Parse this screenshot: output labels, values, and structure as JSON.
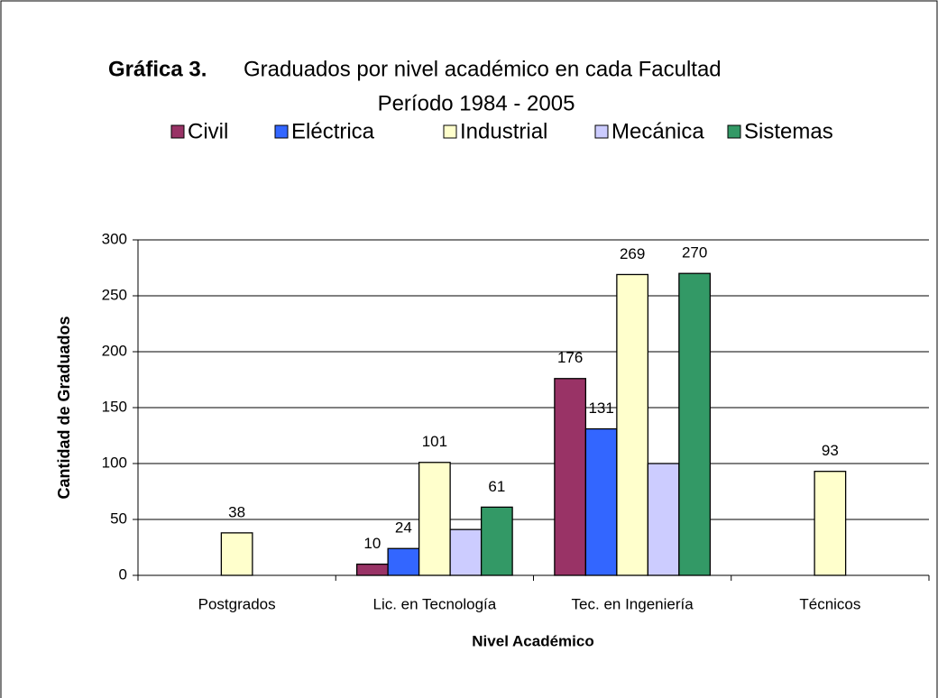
{
  "chart_data": {
    "type": "bar",
    "title_label": "Gráfica 3.",
    "title": "Graduados por nivel académico en cada Facultad",
    "subtitle": "Período 1984 - 2005",
    "x_label": "Nivel Académico",
    "y_label": "Cantidad de Graduados",
    "categories": [
      "Postgrados",
      "Lic. en Tecnología",
      "Tec. en Ingeniería",
      "Técnicos"
    ],
    "series": [
      {
        "name": "Civil",
        "color": "#993366",
        "values": [
          null,
          10,
          176,
          null
        ]
      },
      {
        "name": "Eléctrica",
        "color": "#3366ff",
        "values": [
          null,
          24,
          131,
          null
        ]
      },
      {
        "name": "Industrial",
        "color": "#ffffcc",
        "values": [
          38,
          101,
          269,
          93
        ]
      },
      {
        "name": "Mecánica",
        "color": "#ccccff",
        "values": [
          null,
          41,
          100,
          null
        ],
        "data_labels": false
      },
      {
        "name": "Sistemas",
        "color": "#339966",
        "values": [
          null,
          61,
          270,
          null
        ]
      }
    ],
    "ylim": [
      0,
      300
    ],
    "yticks": [
      0,
      50,
      100,
      150,
      200,
      250,
      300
    ],
    "grid": true,
    "legend": "top"
  }
}
